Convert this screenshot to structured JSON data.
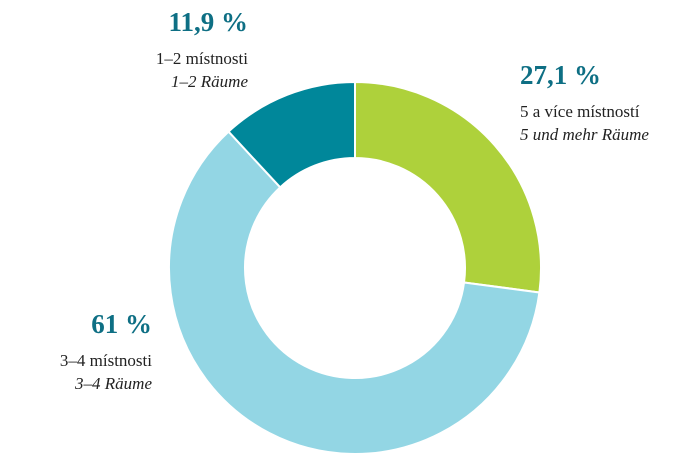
{
  "chart_data": {
    "type": "donut",
    "categories": [
      "5 a více místností",
      "3–4 místnosti",
      "1–2 místnosti"
    ],
    "categories_de": [
      "5 und mehr Räume",
      "3–4 Räume",
      "1–2 Räume"
    ],
    "values": [
      27.1,
      61,
      11.9
    ],
    "value_labels": [
      "27,1 %",
      "61 %",
      "11,9 %"
    ],
    "colors": [
      "#aed13b",
      "#93d6e4",
      "#00879a"
    ]
  }
}
